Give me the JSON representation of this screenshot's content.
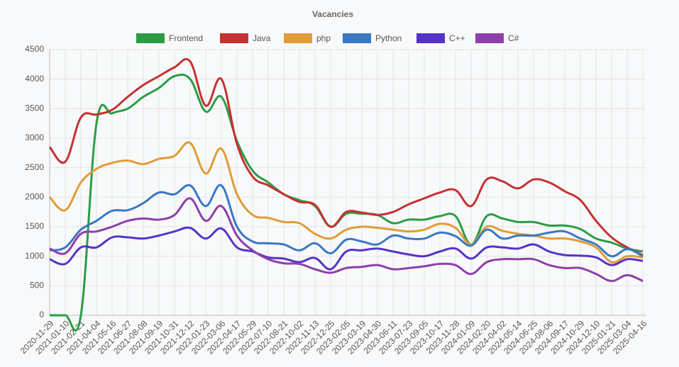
{
  "chart_data": {
    "type": "line",
    "title": "Vacancies",
    "categories": [
      "2020-11-29",
      "2021-01-10",
      "2021-02-21",
      "2021-04-04",
      "2021-05-16",
      "2021-06-27",
      "2021-08-08",
      "2021-09-19",
      "2021-10-31",
      "2021-12-12",
      "2022-01-23",
      "2022-03-06",
      "2022-04-17",
      "2022-05-29",
      "2022-07-10",
      "2022-08-21",
      "2022-10-02",
      "2022-11-13",
      "2022-12-25",
      "2023-02-05",
      "2023-03-19",
      "2023-04-30",
      "2023-06-11",
      "2023-07-23",
      "2023-09-05",
      "2023-10-17",
      "2023-11-28",
      "2024-01-09",
      "2024-02-20",
      "2024-04-02",
      "2024-05-14",
      "2024-06-25",
      "2024-08-06",
      "2024-09-17",
      "2024-10-29",
      "2024-12-10",
      "2025-01-21",
      "2025-03-04",
      "2025-04-16"
    ],
    "series": [
      {
        "name": "Frontend",
        "color": "#2a9d44",
        "values": [
          0,
          0,
          0,
          3250,
          3420,
          3500,
          3700,
          3850,
          4050,
          4000,
          3450,
          3700,
          2950,
          2450,
          2250,
          2050,
          1950,
          1850,
          1500,
          1720,
          1720,
          1700,
          1560,
          1620,
          1620,
          1680,
          1680,
          1200,
          1680,
          1640,
          1580,
          1580,
          1520,
          1520,
          1460,
          1300,
          1230,
          1130,
          1080
        ]
      },
      {
        "name": "Java",
        "color": "#c43232",
        "values": [
          2850,
          2600,
          3350,
          3400,
          3480,
          3700,
          3900,
          4050,
          4200,
          4300,
          3550,
          4000,
          2900,
          2350,
          2200,
          2050,
          1920,
          1870,
          1500,
          1750,
          1740,
          1700,
          1750,
          1880,
          1980,
          2080,
          2120,
          1850,
          2300,
          2270,
          2150,
          2300,
          2250,
          2100,
          1950,
          1600,
          1320,
          1150,
          1020
        ]
      },
      {
        "name": "php",
        "color": "#e09c35",
        "values": [
          2000,
          1780,
          2250,
          2480,
          2580,
          2620,
          2560,
          2650,
          2700,
          2920,
          2400,
          2820,
          2050,
          1700,
          1650,
          1580,
          1560,
          1380,
          1300,
          1450,
          1500,
          1480,
          1450,
          1420,
          1450,
          1550,
          1480,
          1200,
          1500,
          1430,
          1380,
          1350,
          1300,
          1300,
          1250,
          1150,
          900,
          1000,
          980
        ]
      },
      {
        "name": "Python",
        "color": "#3a78c4",
        "values": [
          1100,
          1150,
          1450,
          1600,
          1770,
          1780,
          1900,
          2080,
          2050,
          2200,
          1850,
          2200,
          1500,
          1250,
          1220,
          1200,
          1100,
          1220,
          1050,
          1280,
          1250,
          1200,
          1350,
          1300,
          1300,
          1400,
          1340,
          1180,
          1450,
          1300,
          1350,
          1350,
          1400,
          1420,
          1300,
          1200,
          1000,
          1120,
          1000
        ]
      },
      {
        "name": "C++",
        "color": "#5533c8",
        "values": [
          950,
          870,
          1150,
          1150,
          1320,
          1320,
          1300,
          1350,
          1420,
          1480,
          1300,
          1470,
          1150,
          1080,
          980,
          960,
          900,
          970,
          780,
          1080,
          1100,
          1130,
          1080,
          1030,
          1000,
          1080,
          1130,
          960,
          1150,
          1150,
          1130,
          1200,
          1080,
          1020,
          1010,
          980,
          850,
          950,
          920
        ]
      },
      {
        "name": "C#",
        "color": "#8e3fa8",
        "values": [
          1130,
          1050,
          1380,
          1420,
          1500,
          1600,
          1640,
          1620,
          1700,
          1980,
          1600,
          1850,
          1350,
          1100,
          950,
          880,
          870,
          780,
          720,
          800,
          820,
          850,
          780,
          800,
          830,
          870,
          850,
          700,
          900,
          950,
          950,
          950,
          850,
          800,
          800,
          700,
          580,
          680,
          580
        ]
      }
    ],
    "ylim": [
      0,
      4500
    ],
    "yticks": [
      0,
      500,
      1000,
      1500,
      2000,
      2500,
      3000,
      3500,
      4000,
      4500
    ],
    "grid": true
  }
}
